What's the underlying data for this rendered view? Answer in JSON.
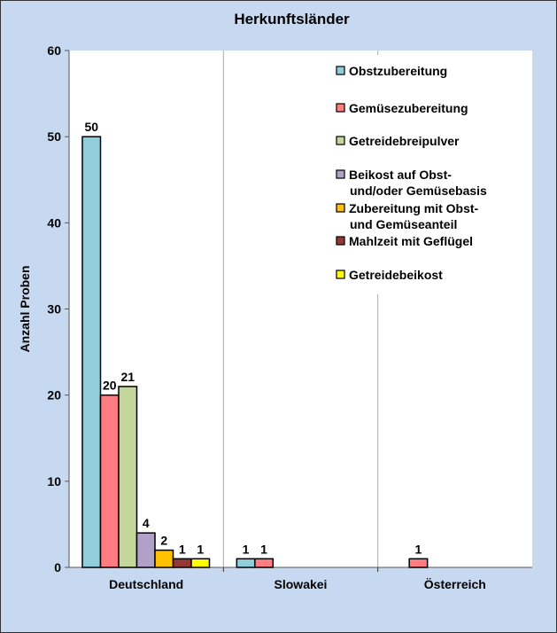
{
  "chart_data": {
    "type": "bar",
    "title": "Herkunftsländer",
    "xlabel": "",
    "ylabel": "Anzahl Proben",
    "ylim": [
      0,
      60
    ],
    "yticks": [
      0,
      10,
      20,
      30,
      40,
      50,
      60
    ],
    "categories": [
      "Deutschland",
      "Slowakei",
      "Österreich"
    ],
    "series": [
      {
        "name": "Obstzubereitung",
        "color": "#92cddc",
        "values": [
          50,
          1,
          null
        ]
      },
      {
        "name": "Gemüsezubereitung",
        "color": "#ff7c80",
        "values": [
          20,
          1,
          1
        ]
      },
      {
        "name": "Getreidebreipulver",
        "color": "#c4d79b",
        "values": [
          21,
          null,
          null
        ]
      },
      {
        "name": "Beikost auf Obst- und/oder Gemüsebasis",
        "label_lines": [
          "Beikost auf Obst-",
          "und/oder Gemüsebasis"
        ],
        "color": "#b1a0c7",
        "values": [
          4,
          null,
          null
        ]
      },
      {
        "name": "Zubereitung mit Obst- und Gemüseanteil",
        "label_lines": [
          "Zubereitung mit Obst-",
          "und Gemüseanteil"
        ],
        "color": "#ffc000",
        "values": [
          2,
          null,
          null
        ]
      },
      {
        "name": "Mahlzeit mit Geflügel",
        "color": "#953735",
        "values": [
          1,
          null,
          null
        ]
      },
      {
        "name": "Getreidebeikost",
        "color": "#ffff00",
        "values": [
          1,
          null,
          null
        ]
      }
    ],
    "legend": "top-right",
    "grid": false
  }
}
